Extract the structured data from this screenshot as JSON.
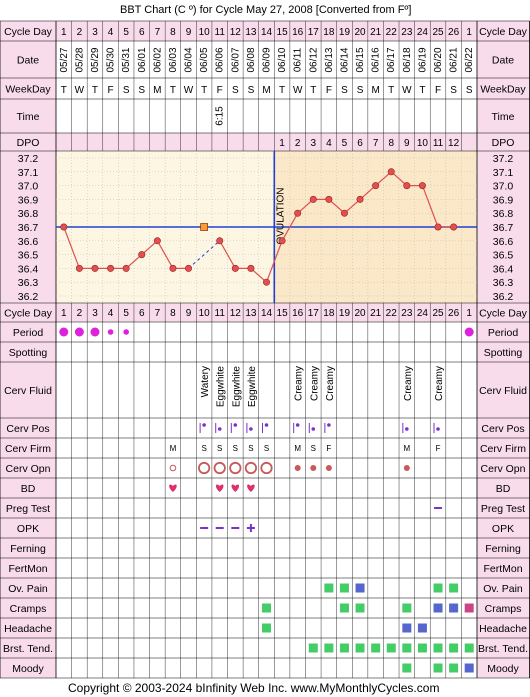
{
  "title": "BBT Chart (C º) for Cycle May 27, 2008  [Converted from Fº]",
  "footer": "Copyright © 2003-2024 bInfinity Web Inc.    www.MyMonthlyCycles.com",
  "colors": {
    "pink": "#f8dcec",
    "chart_bg": "#fdf6e3",
    "post_ovulation": "#fae8c8",
    "line": "#e05050",
    "point": "#e05050",
    "coverline": "#2040d0",
    "ovulation": "#2040d0",
    "period": "#dd22dd",
    "heart": "#e0306a",
    "circle": "#c85a5a",
    "green": "#44cc66",
    "blue": "#5566cc",
    "magenta": "#cc4488",
    "purple": "#7733cc"
  },
  "labels": {
    "cycle_day": "Cycle Day",
    "date": "Date",
    "weekday": "WeekDay",
    "time": "Time",
    "dpo": "DPO",
    "period": "Period",
    "spotting": "Spotting",
    "cerv_fluid": "Cerv Fluid",
    "cerv_pos": "Cerv Pos",
    "cerv_firm": "Cerv Firm",
    "cerv_opn": "Cerv Opn",
    "bd": "BD",
    "preg_test": "Preg Test",
    "opk": "OPK",
    "ferning": "Ferning",
    "fertmon": "FertMon",
    "ov_pain": "Ov. Pain",
    "cramps": "Cramps",
    "headache": "Headache",
    "brst_tend": "Brst. Tend.",
    "moody": "Moody",
    "ovulation": "OVULATION"
  },
  "days": [
    "1",
    "2",
    "3",
    "4",
    "5",
    "6",
    "7",
    "8",
    "9",
    "10",
    "11",
    "12",
    "13",
    "14",
    "15",
    "16",
    "17",
    "18",
    "19",
    "20",
    "21",
    "22",
    "23",
    "24",
    "25",
    "26",
    "1"
  ],
  "dates": [
    "05/27",
    "05/28",
    "05/29",
    "05/30",
    "05/31",
    "06/01",
    "06/02",
    "06/03",
    "06/04",
    "06/05",
    "06/06",
    "06/07",
    "06/08",
    "06/09",
    "06/10",
    "06/11",
    "06/12",
    "06/13",
    "06/14",
    "06/15",
    "06/16",
    "06/17",
    "06/18",
    "06/19",
    "06/20",
    "06/21",
    "06/22"
  ],
  "weekdays": [
    "T",
    "W",
    "T",
    "F",
    "S",
    "S",
    "M",
    "T",
    "W",
    "T",
    "F",
    "S",
    "S",
    "M",
    "T",
    "W",
    "T",
    "F",
    "S",
    "S",
    "M",
    "T",
    "W",
    "T",
    "F",
    "S",
    "S"
  ],
  "times": [
    "",
    "",
    "",
    "",
    "",
    "",
    "",
    "",
    "",
    "",
    "6:15",
    "",
    "",
    "",
    "",
    "",
    "",
    "",
    "",
    "",
    "",
    "",
    "",
    "",
    "",
    "",
    ""
  ],
  "dpo": [
    "",
    "",
    "",
    "",
    "",
    "",
    "",
    "",
    "",
    "",
    "",
    "",
    "",
    "",
    "1",
    "2",
    "3",
    "4",
    "5",
    "6",
    "7",
    "8",
    "9",
    "10",
    "11",
    "12",
    ""
  ],
  "chart_data": {
    "type": "line",
    "x": [
      1,
      2,
      3,
      4,
      5,
      6,
      7,
      8,
      9,
      10,
      11,
      12,
      13,
      14,
      15,
      16,
      17,
      18,
      19,
      20,
      21,
      22,
      23,
      24,
      25,
      26,
      27
    ],
    "series": [
      {
        "values": [
          36.7,
          36.4,
          36.4,
          36.4,
          36.4,
          36.5,
          36.6,
          36.4,
          36.4,
          null,
          36.6,
          36.4,
          36.4,
          36.3,
          36.6,
          36.8,
          36.9,
          36.9,
          36.8,
          36.9,
          37.0,
          37.1,
          37.0,
          37.0,
          36.7,
          36.7,
          null
        ]
      }
    ],
    "marker_square": {
      "x": 10,
      "y": 36.7
    },
    "yticks": [
      "37.2",
      "37.1",
      "37.0",
      "36.9",
      "36.8",
      "36.7",
      "36.6",
      "36.5",
      "36.4",
      "36.3",
      "36.2"
    ],
    "ylim": [
      36.2,
      37.2
    ],
    "coverline": 36.7,
    "ovulation_day": 14
  },
  "period": [
    "big",
    "big",
    "big",
    "small",
    "small",
    "",
    "",
    "",
    "",
    "",
    "",
    "",
    "",
    "",
    "",
    "",
    "",
    "",
    "",
    "",
    "",
    "",
    "",
    "",
    "",
    "",
    "big"
  ],
  "cerv_fluid": [
    "",
    "",
    "",
    "",
    "",
    "",
    "",
    "",
    "",
    "Watery",
    "Eggwhite",
    "Eggwhite",
    "Eggwhite",
    "",
    "",
    "Creamy",
    "Creamy",
    "Creamy",
    "",
    "",
    "",
    "",
    "Creamy",
    "",
    "Creamy",
    "",
    ""
  ],
  "cerv_pos": [
    "",
    "",
    "",
    "",
    "",
    "",
    "",
    "",
    "",
    "bar",
    "dot",
    "bar",
    "dot",
    "bar",
    "",
    "bar",
    "dot",
    "bar",
    "",
    "",
    "",
    "",
    "dot",
    "",
    "dot",
    "",
    ""
  ],
  "cerv_firm": [
    "",
    "",
    "",
    "",
    "",
    "",
    "",
    "M",
    "",
    "S",
    "S",
    "S",
    "S",
    "S",
    "",
    "M",
    "S",
    "F",
    "",
    "",
    "",
    "",
    "M",
    "",
    "F",
    "",
    ""
  ],
  "cerv_opn": [
    "",
    "",
    "",
    "",
    "",
    "",
    "",
    "small",
    "",
    "big",
    "big",
    "big",
    "big",
    "big",
    "",
    "mid",
    "mid",
    "mid",
    "",
    "",
    "",
    "",
    "mid",
    "",
    "",
    "",
    ""
  ],
  "bd": [
    "",
    "",
    "",
    "",
    "",
    "",
    "",
    "heart",
    "",
    "",
    "heart",
    "heart",
    "heart",
    "",
    "",
    "",
    "",
    "",
    "",
    "",
    "",
    "",
    "",
    "",
    "",
    "",
    ""
  ],
  "preg_test": [
    "",
    "",
    "",
    "",
    "",
    "",
    "",
    "",
    "",
    "",
    "",
    "",
    "",
    "",
    "",
    "",
    "",
    "",
    "",
    "",
    "",
    "",
    "",
    "",
    "dash",
    "",
    ""
  ],
  "opk": [
    "",
    "",
    "",
    "",
    "",
    "",
    "",
    "",
    "",
    "dash",
    "dash",
    "dash",
    "plus",
    "",
    "",
    "",
    "",
    "",
    "",
    "",
    "",
    "",
    "",
    "",
    "",
    "",
    ""
  ],
  "ov_pain": [
    "",
    "",
    "",
    "",
    "",
    "",
    "",
    "",
    "",
    "",
    "",
    "",
    "",
    "",
    "",
    "",
    "",
    "green",
    "green",
    "blue",
    "",
    "",
    "",
    "",
    "green",
    "green",
    ""
  ],
  "cramps": [
    "",
    "",
    "",
    "",
    "",
    "",
    "",
    "",
    "",
    "",
    "",
    "",
    "",
    "green",
    "",
    "",
    "",
    "",
    "green",
    "green",
    "",
    "",
    "green",
    "",
    "blue",
    "blue",
    "magenta"
  ],
  "headache": [
    "",
    "",
    "",
    "",
    "",
    "",
    "",
    "",
    "",
    "",
    "",
    "",
    "",
    "green",
    "",
    "",
    "",
    "",
    "",
    "",
    "",
    "",
    "blue",
    "blue",
    "",
    "",
    ""
  ],
  "brst_tend": [
    "",
    "",
    "",
    "",
    "",
    "",
    "",
    "",
    "",
    "",
    "",
    "",
    "",
    "",
    "",
    "",
    "green",
    "green",
    "green",
    "green",
    "green",
    "green",
    "green",
    "green",
    "green",
    "green",
    "green"
  ],
  "moody": [
    "",
    "",
    "",
    "",
    "",
    "",
    "",
    "",
    "",
    "",
    "",
    "",
    "",
    "",
    "",
    "",
    "",
    "",
    "",
    "",
    "",
    "",
    "green",
    "",
    "green",
    "green",
    "blue"
  ]
}
